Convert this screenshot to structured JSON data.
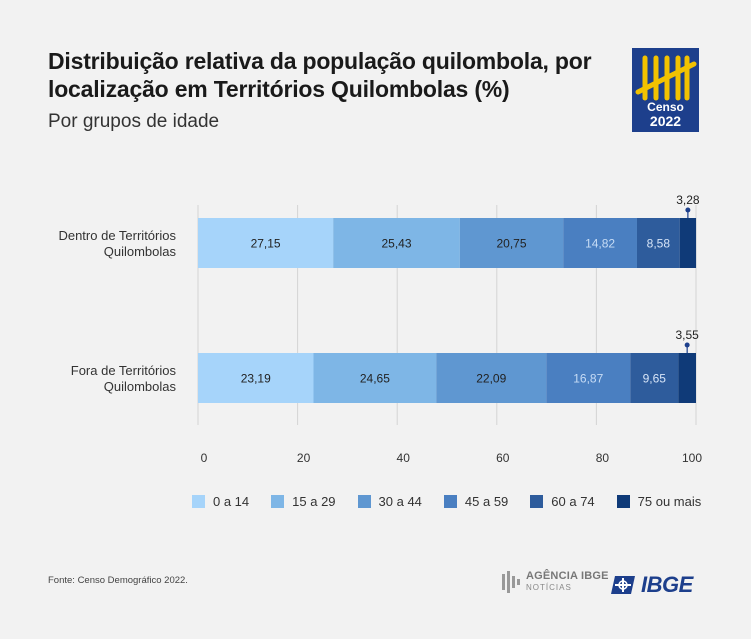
{
  "header": {
    "title": "Distribuição relativa da população quilombola, por localização em Territórios Quilombolas (%)",
    "subtitle": "Por grupos de idade"
  },
  "logo": {
    "line1": "Censo",
    "line2": "2022",
    "bg_color": "#1d3f8c",
    "accent_color": "#f2c200"
  },
  "chart_data": {
    "type": "bar",
    "orientation": "horizontal",
    "stacked": true,
    "categories": [
      "Dentro de Territórios Quilombolas",
      "Fora de Territórios Quilombolas"
    ],
    "category_lines": [
      [
        "Dentro de Territórios",
        "Quilombolas"
      ],
      [
        "Fora de Territórios",
        "Quilombolas"
      ]
    ],
    "series": [
      {
        "name": "0 a 14",
        "values": [
          27.15,
          23.19
        ],
        "labels": [
          "27,15",
          "23,19"
        ],
        "color": "#a6d4fa",
        "label_color": "#222222"
      },
      {
        "name": "15 a 29",
        "values": [
          25.43,
          24.65
        ],
        "labels": [
          "25,43",
          "24,65"
        ],
        "color": "#7eb6e6",
        "label_color": "#222222"
      },
      {
        "name": "30 a 44",
        "values": [
          20.75,
          22.09
        ],
        "labels": [
          "20,75",
          "22,09"
        ],
        "color": "#5f97d1",
        "label_color": "#222222"
      },
      {
        "name": "45 a 59",
        "values": [
          14.82,
          16.87
        ],
        "labels": [
          "14,82",
          "16,87"
        ],
        "color": "#4a7fc1",
        "label_color": "#c7dcf5"
      },
      {
        "name": "60 a 74",
        "values": [
          8.58,
          9.65
        ],
        "labels": [
          "8,58",
          "9,65"
        ],
        "color": "#2e5c9c",
        "label_color": "#d6e4f7"
      },
      {
        "name": "75 ou mais",
        "values": [
          3.28,
          3.55
        ],
        "labels": [
          "3,28",
          "3,55"
        ],
        "color": "#0f3a78",
        "label_color": "#222222"
      }
    ],
    "xlim": [
      0,
      100
    ],
    "xticks": [
      0,
      20,
      40,
      60,
      80,
      100
    ],
    "grid": true,
    "legend_position": "bottom",
    "callout_series": "75 ou mais"
  },
  "footer": {
    "source": "Fonte: Censo Demográfico 2022.",
    "agencia_line1": "AGÊNCIA IBGE",
    "agencia_line2": "NOTÍCIAS",
    "ibge": "IBGE"
  }
}
